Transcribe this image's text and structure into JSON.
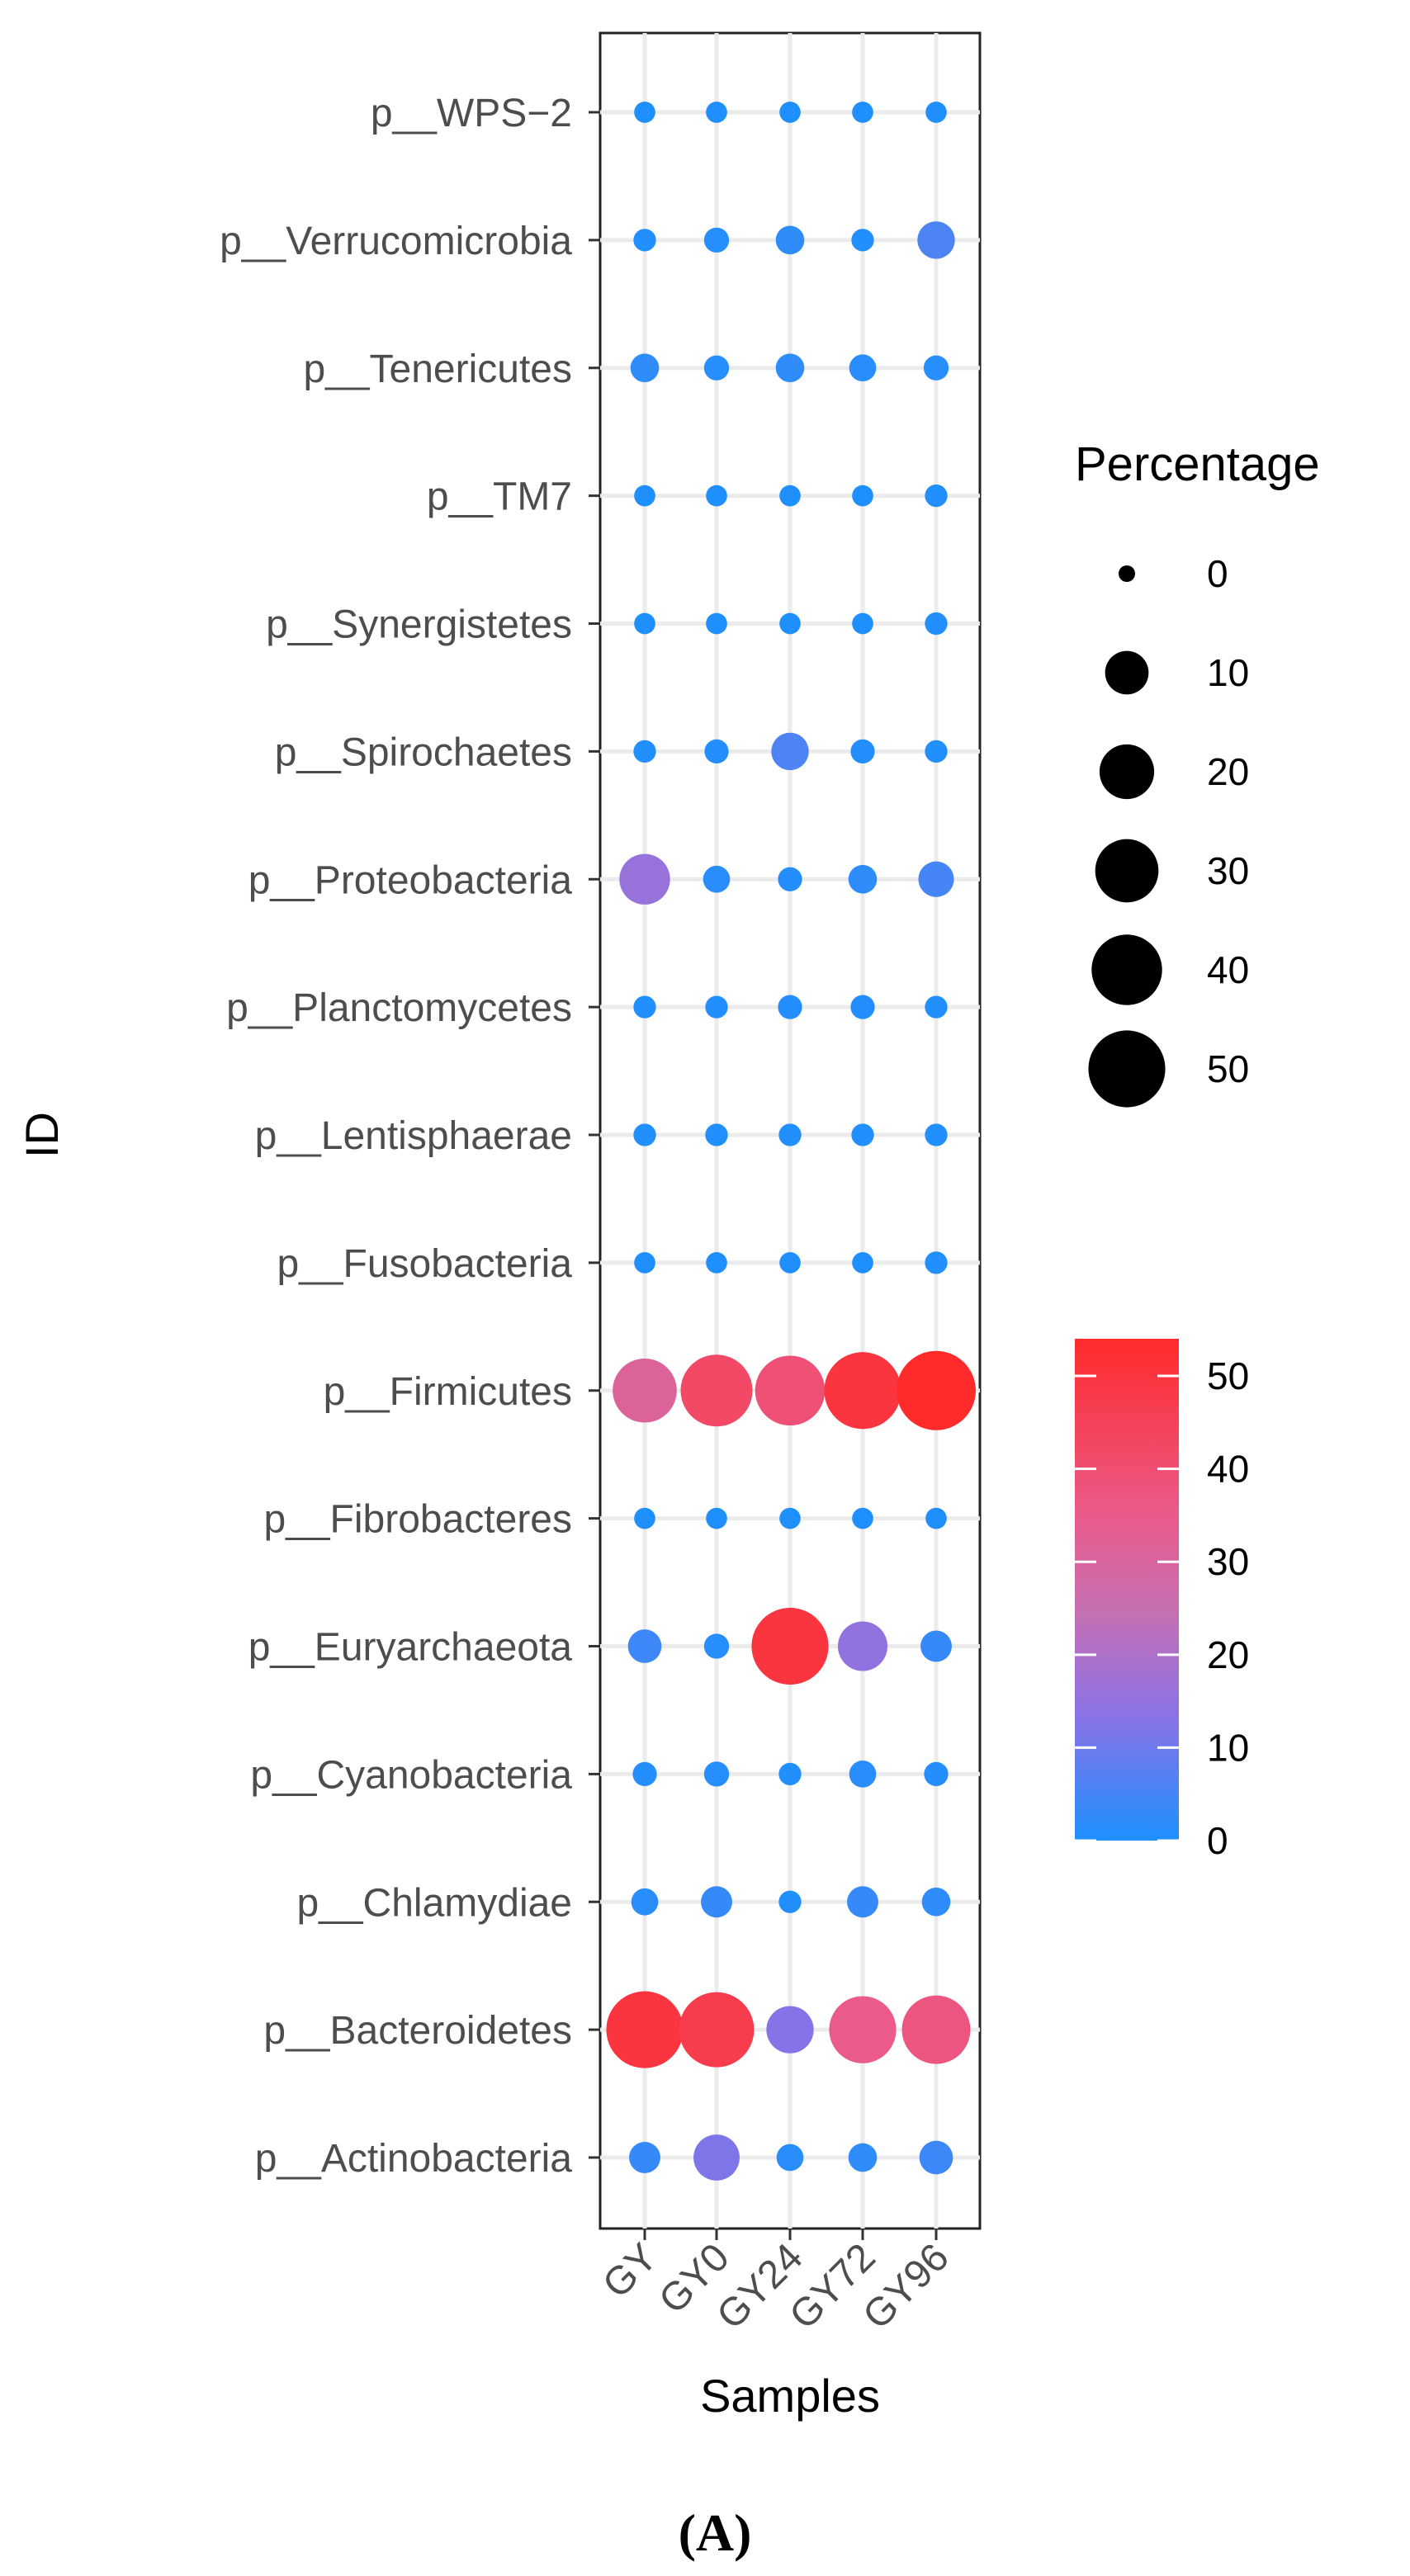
{
  "chart_data": {
    "type": "scatter",
    "subtype": "bubble",
    "panel_label": "(A)",
    "xlabel": "Samples",
    "ylabel": "ID",
    "x_categories": [
      "GY",
      "GY0",
      "GY24",
      "GY72",
      "GY96"
    ],
    "y_categories": [
      "p__Actinobacteria",
      "p__Bacteroidetes",
      "p__Chlamydiae",
      "p__Cyanobacteria",
      "p__Euryarchaeota",
      "p__Fibrobacteres",
      "p__Firmicutes",
      "p__Fusobacteria",
      "p__Lentisphaerae",
      "p__Planctomycetes",
      "p__Proteobacteria",
      "p__Spirochaetes",
      "p__Synergistetes",
      "p__TM7",
      "p__Tenericutes",
      "p__Verrucomicrobia",
      "p__WPS−2"
    ],
    "values": {
      "p__Actinobacteria": [
        3,
        12,
        1.5,
        2,
        4
      ],
      "p__Bacteroidetes": [
        50,
        47,
        13,
        35,
        37
      ],
      "p__Chlamydiae": [
        1.5,
        3,
        0.5,
        3,
        2
      ],
      "p__Cyanobacteria": [
        0.8,
        1,
        0.5,
        1.5,
        0.8
      ],
      "p__Euryarchaeota": [
        4,
        1,
        50,
        15,
        3
      ],
      "p__Fibrobacteres": [
        0.3,
        0.3,
        0.3,
        0.3,
        0.3
      ],
      "p__Firmicutes": [
        31,
        42,
        39,
        50,
        54
      ],
      "p__Fusobacteria": [
        0.3,
        0.3,
        0.3,
        0.3,
        0.5
      ],
      "p__Lentisphaerae": [
        0.5,
        0.5,
        0.5,
        0.5,
        0.5
      ],
      "p__Planctomycetes": [
        0.5,
        0.5,
        0.8,
        0.8,
        0.5
      ],
      "p__Proteobacteria": [
        16,
        1.5,
        0.8,
        2,
        5
      ],
      "p__Spirochaetes": [
        0.5,
        0.8,
        6,
        0.8,
        0.5
      ],
      "p__Synergistetes": [
        0.3,
        0.3,
        0.3,
        0.3,
        0.5
      ],
      "p__TM7": [
        0.3,
        0.3,
        0.3,
        0.3,
        0.5
      ],
      "p__Tenericutes": [
        2,
        1,
        2,
        1.5,
        1
      ],
      "p__Verrucomicrobia": [
        0.5,
        1,
        2,
        0.5,
        6
      ],
      "p__WPS−2": [
        0.3,
        0.3,
        0.3,
        0.3,
        0.3
      ]
    },
    "size_legend": {
      "title": "Percentage",
      "breaks": [
        0,
        10,
        20,
        30,
        40,
        50
      ]
    },
    "color_legend": {
      "breaks": [
        0,
        10,
        20,
        30,
        40,
        50
      ],
      "low_color": "#1E90FF",
      "mid_color": "#B07FD0",
      "high_color": "#FF2B2B",
      "range": [
        0,
        54
      ]
    },
    "grid": true
  }
}
